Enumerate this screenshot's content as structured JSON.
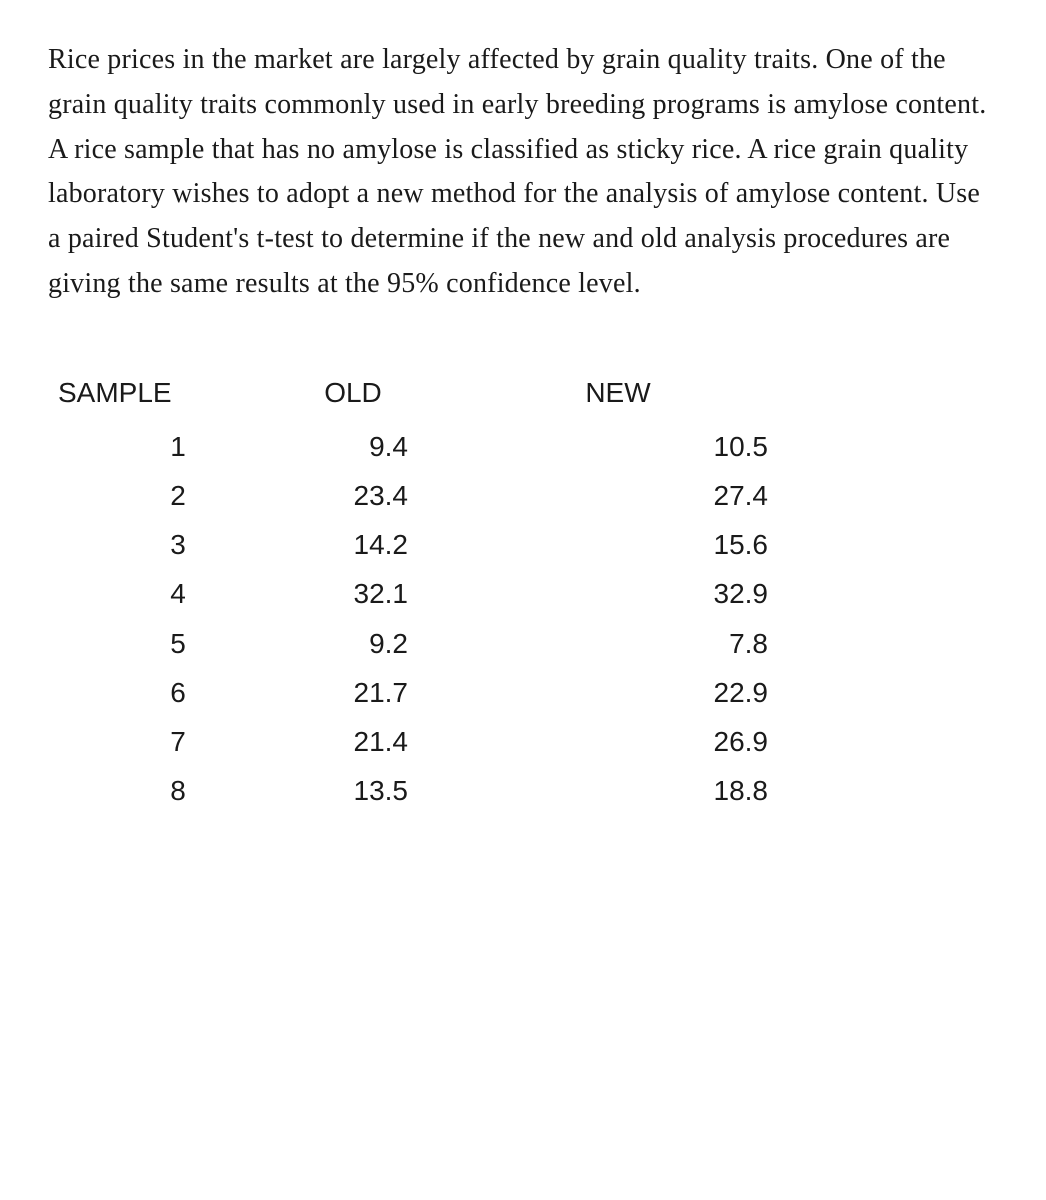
{
  "paragraph": "Rice prices in the market are largely affected by grain quality traits. One of the grain quality traits commonly used in early breeding programs is amylose content. A rice sample that has no amylose is classified as sticky rice. A rice grain quality laboratory wishes to adopt a new method for the analysis of amylose content. Use a paired Student's t-test to determine if the new and old analysis procedures are giving the same results at the 95% confidence level.",
  "table": {
    "type": "table",
    "headers": {
      "sample": "SAMPLE",
      "old": "OLD",
      "new": "NEW"
    },
    "rows": [
      {
        "sample": "1",
        "old": "9.4",
        "new": "10.5"
      },
      {
        "sample": "2",
        "old": "23.4",
        "new": "27.4"
      },
      {
        "sample": "3",
        "old": "14.2",
        "new": "15.6"
      },
      {
        "sample": "4",
        "old": "32.1",
        "new": "32.9"
      },
      {
        "sample": "5",
        "old": "9.2",
        "new": "7.8"
      },
      {
        "sample": "6",
        "old": "21.7",
        "new": "22.9"
      },
      {
        "sample": "7",
        "old": "21.4",
        "new": "26.9"
      },
      {
        "sample": "8",
        "old": "13.5",
        "new": "18.8"
      }
    ],
    "styling": {
      "text_color": "#1a1a1a",
      "background_color": "#ffffff",
      "header_fontsize": 28,
      "cell_fontsize": 28,
      "font_family_body": "Georgia, serif",
      "font_family_table": "Helvetica, Arial, sans-serif"
    }
  }
}
